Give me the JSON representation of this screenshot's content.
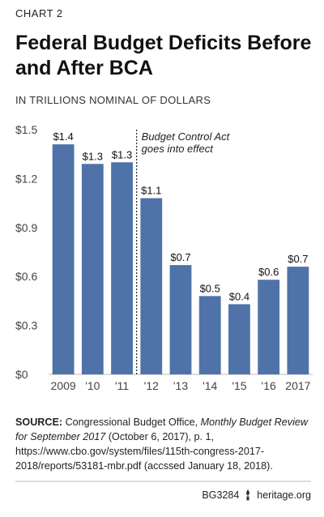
{
  "kicker": "CHART 2",
  "title": "Federal Budget Deficits Before and After BCA",
  "unit_label": "IN TRILLIONS NOMINAL OF DOLLARS",
  "source": {
    "label": "SOURCE:",
    "text_before": " Congressional Budget Office, ",
    "publication": "Monthly Budget Review for September 2017",
    "text_after": " (October 6, 2017), p. 1, https://www.cbo.gov/system/files/115th-congress-2017-2018/reports/53181-mbr.pdf (accssed January 18, 2018)."
  },
  "footer": {
    "code": "BG3284",
    "site": "heritage.org",
    "icon": "heritage-torch-icon"
  },
  "colors": {
    "bar": "#4f73a8",
    "axis": "#c8c8c8",
    "text": "#222222"
  },
  "chart_data": {
    "type": "bar",
    "categories": [
      "2009",
      "'10",
      "'11",
      "'12",
      "'13",
      "'14",
      "'15",
      "'16",
      "2017"
    ],
    "values": [
      1.41,
      1.29,
      1.3,
      1.08,
      0.67,
      0.48,
      0.43,
      0.58,
      0.66
    ],
    "data_labels": [
      "$1.4",
      "$1.3",
      "$1.3",
      "$1.1",
      "$0.7",
      "$0.5",
      "$0.4",
      "$0.6",
      "$0.7"
    ],
    "yticks": [
      "$0",
      "$0.3",
      "$0.6",
      "$0.9",
      "$1.2",
      "$1.5"
    ],
    "ytick_values": [
      0,
      0.3,
      0.6,
      0.9,
      1.2,
      1.5
    ],
    "ylim": [
      0,
      1.5
    ],
    "grid": false,
    "annotation": {
      "text": "Budget Control Act goes into effect",
      "lines": [
        "Budget Control Act",
        "goes into effect"
      ],
      "between_categories": [
        "'11",
        "'12"
      ]
    }
  }
}
